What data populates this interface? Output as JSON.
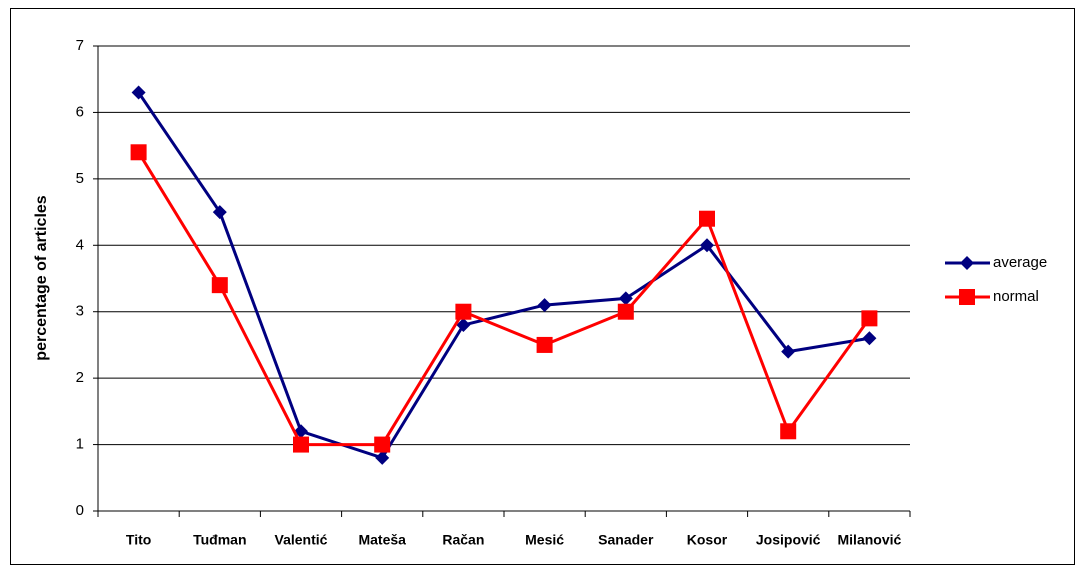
{
  "chart_data": {
    "type": "line",
    "y_label": "percentage of articles",
    "categories": [
      "Tito",
      "Tuđman",
      "Valentić",
      "Mateša",
      "Račan",
      "Mesić",
      "Sanader",
      "Kosor",
      "Josipović",
      "Milanović"
    ],
    "series": [
      {
        "name": "average",
        "color": "#000080",
        "marker": "diamond",
        "values": [
          6.3,
          4.5,
          1.2,
          0.8,
          2.8,
          3.1,
          3.2,
          4.0,
          2.4,
          2.6
        ]
      },
      {
        "name": "normal",
        "color": "#ff0000",
        "marker": "square",
        "values": [
          5.4,
          3.4,
          1.0,
          1.0,
          3.0,
          2.5,
          3.0,
          4.4,
          1.2,
          2.9
        ]
      }
    ],
    "ylim": [
      0,
      7
    ],
    "yticks": [
      0,
      1,
      2,
      3,
      4,
      5,
      6,
      7
    ],
    "grid": true,
    "legend": "right"
  }
}
